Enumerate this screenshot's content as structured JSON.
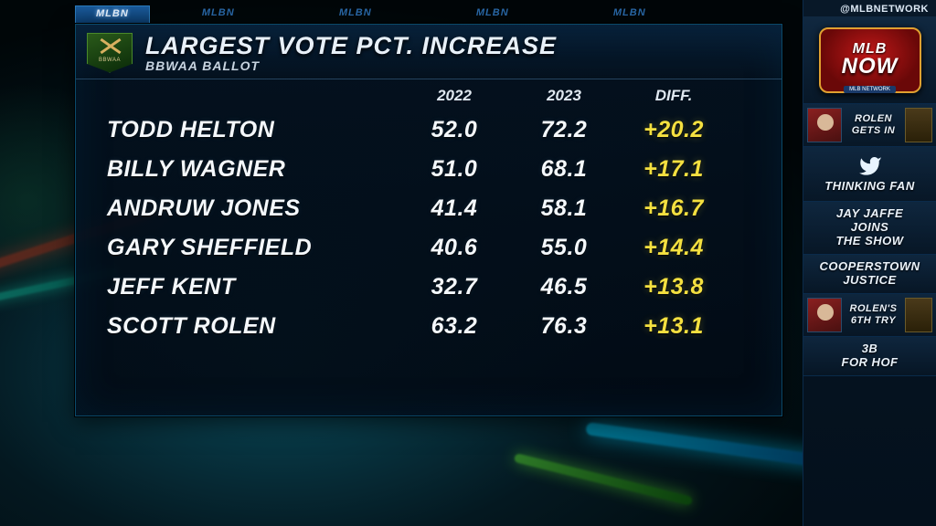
{
  "handle": "@MLBNETWORK",
  "logo": {
    "line1": "MLB",
    "line2": "NOW",
    "ribbon": "MLB NETWORK"
  },
  "tabs": {
    "active_label": "MLBN",
    "ghost_label": "MLBN"
  },
  "panel": {
    "badge_label": "BBWAA",
    "title": "LARGEST VOTE PCT. INCREASE",
    "subtitle": "BBWAA BALLOT",
    "columns": {
      "c1": "2022",
      "c2": "2023",
      "c3": "DIFF."
    },
    "rows": [
      {
        "name": "TODD HELTON",
        "y2022": "52.0",
        "y2023": "72.2",
        "diff": "+20.2"
      },
      {
        "name": "BILLY WAGNER",
        "y2022": "51.0",
        "y2023": "68.1",
        "diff": "+17.1"
      },
      {
        "name": "ANDRUW JONES",
        "y2022": "41.4",
        "y2023": "58.1",
        "diff": "+16.7"
      },
      {
        "name": "GARY SHEFFIELD",
        "y2022": "40.6",
        "y2023": "55.0",
        "diff": "+14.4"
      },
      {
        "name": "JEFF KENT",
        "y2022": "32.7",
        "y2023": "46.5",
        "diff": "+13.8"
      },
      {
        "name": "SCOTT ROLEN",
        "y2022": "63.2",
        "y2023": "76.3",
        "diff": "+13.1"
      }
    ],
    "colors": {
      "text": "#f4f8fc",
      "diff": "#f4e040",
      "panel_bg_top": "#041220",
      "panel_bg_bot": "#020a14",
      "border": "#0a4a6a"
    }
  },
  "sidebar": [
    {
      "kind": "img",
      "label": "ROLEN GETS IN"
    },
    {
      "kind": "twitter",
      "label": "THINKING FAN"
    },
    {
      "kind": "text",
      "label": "JAY JAFFE\nJOINS\nTHE SHOW"
    },
    {
      "kind": "text",
      "label": "COOPERSTOWN\nJUSTICE"
    },
    {
      "kind": "img",
      "label": "ROLEN'S 6TH TRY"
    },
    {
      "kind": "text",
      "label": "3B\nFOR HOF"
    }
  ]
}
